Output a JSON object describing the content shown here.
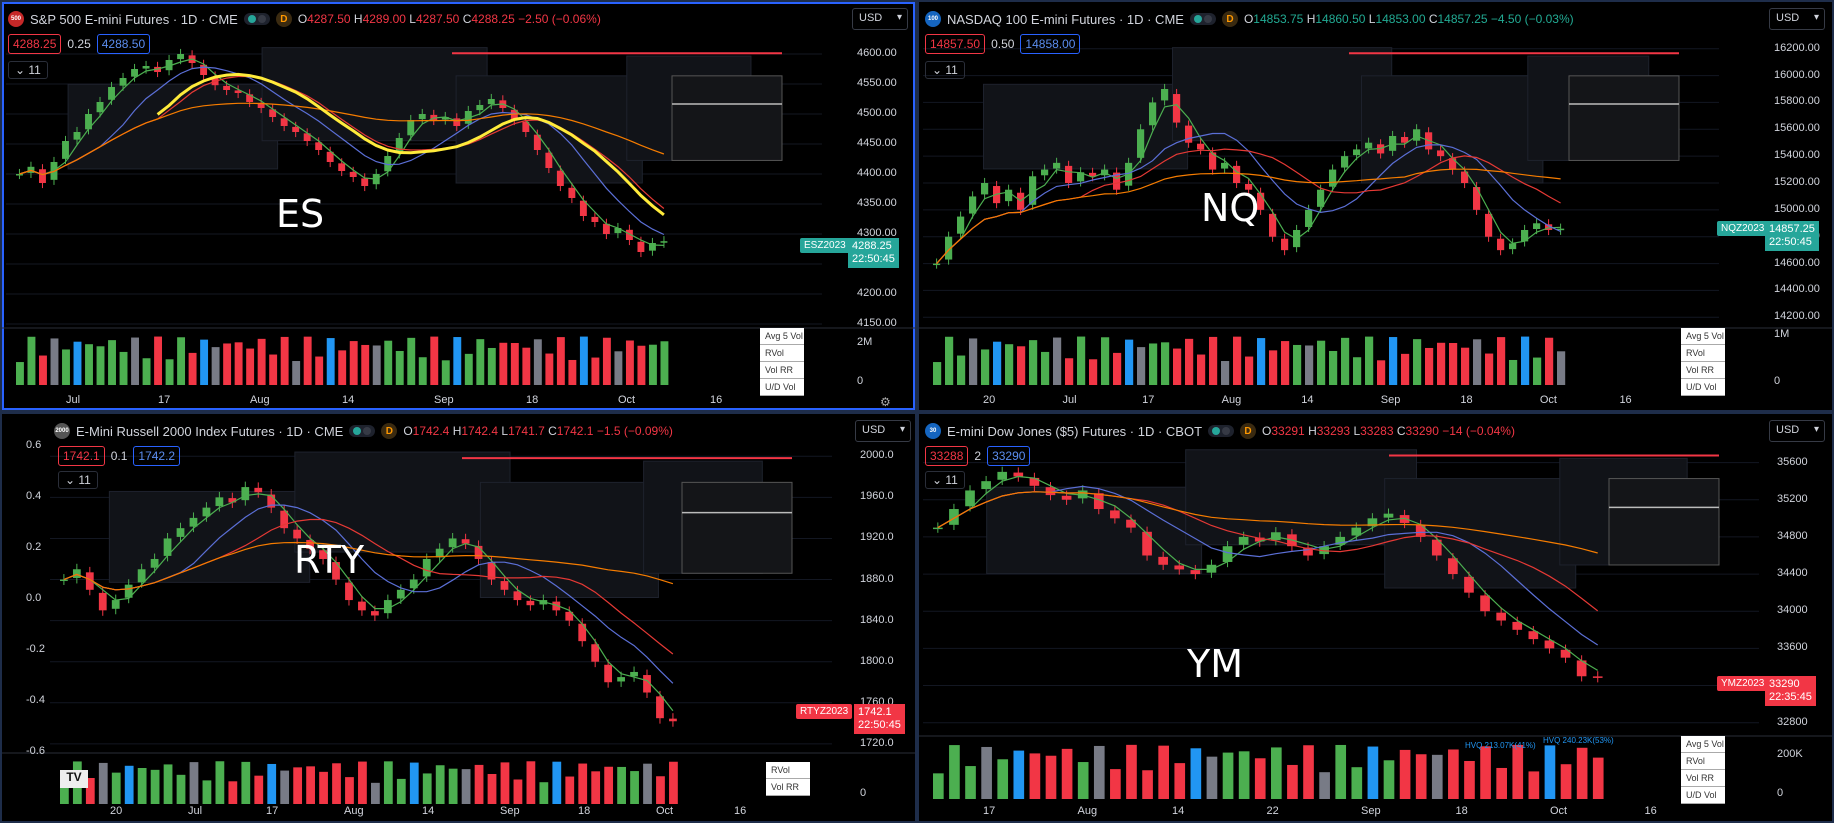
{
  "colors": {
    "up": "#4caf50",
    "down": "#f23645",
    "neutral": "#787b86",
    "hv": "#2196f3",
    "ma_fast": "#4caf50",
    "ma_mid": "#5b6fd6",
    "ma_slow": "#e53935",
    "ma_long": "#f57c00",
    "hl": "#ffeb3b"
  },
  "panes": [
    {
      "id": "es",
      "title": "S&P 500 E-mini Futures · 1D · CME",
      "icon": "500",
      "ohlc": {
        "o": "4287.50",
        "h": "4289.00",
        "l": "4287.50",
        "c": "4288.25",
        "chg": "−2.50 (−0.06%)"
      },
      "bid": "4288.25",
      "spread": "0.25",
      "ask": "4288.50",
      "ind_count": "11",
      "currency": "USD",
      "watermark": "ES",
      "yticks": [
        "4600.00",
        "4550.00",
        "4500.00",
        "4450.00",
        "4400.00",
        "4350.00",
        "4300.00",
        "4250.00",
        "4200.00",
        "4150.00"
      ],
      "xticks": [
        "Jul",
        "17",
        "Aug",
        "14",
        "Sep",
        "18",
        "Oct",
        "16"
      ],
      "price_tag": "4288.25",
      "countdown": "22:50:45",
      "ticker": "ESZ2023",
      "vol_axis": [
        "2M",
        "0"
      ],
      "vol_table": [
        "Avg 5 Vol",
        "RVol",
        "Vol RR",
        "U/D Vol"
      ]
    },
    {
      "id": "nq",
      "title": "NASDAQ 100 E-mini Futures · 1D · CME",
      "icon": "100",
      "ohlc": {
        "o": "14853.75",
        "h": "14860.50",
        "l": "14853.00",
        "c": "14857.25",
        "chg": "−4.50 (−0.03%)"
      },
      "bid": "14857.50",
      "spread": "0.50",
      "ask": "14858.00",
      "ind_count": "11",
      "currency": "USD",
      "watermark": "NQ",
      "yticks": [
        "16200.00",
        "16000.00",
        "15800.00",
        "15600.00",
        "15400.00",
        "15200.00",
        "15000.00",
        "14800.00",
        "14600.00",
        "14400.00",
        "14200.00"
      ],
      "xticks": [
        "20",
        "Jul",
        "17",
        "Aug",
        "14",
        "Sep",
        "18",
        "Oct",
        "16"
      ],
      "price_tag": "14857.25",
      "countdown": "22:50:45",
      "ticker": "NQZ2023",
      "vol_axis": [
        "1M",
        "0"
      ],
      "vol_table": [
        "Avg 5 Vol",
        "RVol",
        "Vol RR",
        "U/D Vol"
      ]
    },
    {
      "id": "rty",
      "title": "E-Mini Russell 2000 Index Futures · 1D · CME",
      "icon": "2000",
      "ohlc": {
        "o": "1742.4",
        "h": "1742.4",
        "l": "1741.7",
        "c": "1742.1",
        "chg": "−1.5 (−0.09%)"
      },
      "bid": "1742.1",
      "spread": "0.1",
      "ask": "1742.2",
      "ind_count": "11",
      "currency": "USD",
      "watermark": "RTY",
      "yticks": [
        "2000.0",
        "1960.0",
        "1920.0",
        "1880.0",
        "1840.0",
        "1800.0",
        "1760.0",
        "1720.0"
      ],
      "lticks": [
        "0.6",
        "0.4",
        "0.2",
        "0.0",
        "-0.2",
        "-0.4",
        "-0.6"
      ],
      "xticks": [
        "20",
        "Jul",
        "17",
        "Aug",
        "14",
        "Sep",
        "18",
        "Oct",
        "16"
      ],
      "price_tag": "1742.1",
      "countdown": "22:50:45",
      "ticker": "RTYZ2023",
      "vol_axis": [
        "0"
      ],
      "vol_table": [
        "RVol",
        "Vol RR"
      ]
    },
    {
      "id": "ym",
      "title": "E-mini Dow Jones ($5) Futures · 1D · CBOT",
      "icon": "30",
      "ohlc": {
        "o": "33291",
        "h": "33293",
        "l": "33283",
        "c": "33290",
        "chg": "−14 (−0.04%)"
      },
      "bid": "33288",
      "spread": "2",
      "ask": "33290",
      "ind_count": "11",
      "currency": "USD",
      "watermark": "YM",
      "yticks": [
        "35600",
        "35200",
        "34800",
        "34400",
        "34000",
        "33600",
        "33200",
        "32800"
      ],
      "xticks": [
        "17",
        "Aug",
        "14",
        "22",
        "Sep",
        "18",
        "Oct",
        "16"
      ],
      "price_tag": "33290",
      "countdown": "22:35:45",
      "ticker": "YMZ2023",
      "vol_axis": [
        "200K",
        "0"
      ],
      "vol_table": [
        "Avg 5 Vol",
        "RVol",
        "Vol RR",
        "U/D Vol"
      ],
      "hv_labels": [
        "HVQ 213.07K(41%)",
        "HVQ 240.23K(53%)"
      ]
    }
  ],
  "chart_data": [
    {
      "type": "candlestick",
      "name": "ES",
      "ylim": [
        4150,
        4620
      ],
      "closes": [
        4400,
        4412,
        4385,
        4420,
        4455,
        4470,
        4500,
        4520,
        4545,
        4560,
        4575,
        4580,
        4570,
        4590,
        4600,
        4585,
        4565,
        4548,
        4540,
        4535,
        4520,
        4510,
        4495,
        4480,
        4470,
        4455,
        4440,
        4420,
        4405,
        4395,
        4380,
        4400,
        4430,
        4460,
        4490,
        4500,
        4490,
        4495,
        4480,
        4505,
        4515,
        4525,
        4510,
        4490,
        4470,
        4440,
        4410,
        4380,
        4360,
        4330,
        4320,
        4300,
        4310,
        4290,
        4270,
        4285,
        4288
      ]
    },
    {
      "type": "candlestick",
      "name": "NQ",
      "ylim": [
        14150,
        16250
      ],
      "closes": [
        14600,
        14800,
        14950,
        15100,
        15200,
        15050,
        15150,
        15000,
        15250,
        15300,
        15350,
        15200,
        15280,
        15250,
        15300,
        15150,
        15350,
        15600,
        15800,
        15900,
        15650,
        15500,
        15450,
        15300,
        15350,
        15200,
        15150,
        15000,
        14800,
        14700,
        14850,
        15000,
        15150,
        15300,
        15400,
        15450,
        15500,
        15420,
        15550,
        15500,
        15600,
        15450,
        15400,
        15300,
        15200,
        15000,
        14800,
        14700,
        14750,
        14850,
        14900,
        14850,
        14860
      ]
    },
    {
      "type": "candlestick",
      "name": "RTY",
      "ylim": [
        1715,
        2010
      ],
      "closes": [
        1880,
        1890,
        1870,
        1850,
        1860,
        1875,
        1890,
        1900,
        1920,
        1930,
        1940,
        1950,
        1960,
        1955,
        1970,
        1965,
        1950,
        1930,
        1920,
        1910,
        1900,
        1880,
        1860,
        1850,
        1845,
        1860,
        1870,
        1880,
        1900,
        1910,
        1920,
        1915,
        1900,
        1880,
        1870,
        1860,
        1855,
        1860,
        1850,
        1840,
        1820,
        1800,
        1780,
        1785,
        1790,
        1770,
        1745,
        1742
      ]
    },
    {
      "type": "candlestick",
      "name": "YM",
      "ylim": [
        32700,
        35800
      ],
      "closes": [
        34900,
        35100,
        35300,
        35400,
        35500,
        35450,
        35350,
        35250,
        35200,
        35300,
        35100,
        35000,
        34900,
        34600,
        34500,
        34450,
        34400,
        34500,
        34700,
        34800,
        34750,
        34850,
        34700,
        34600,
        34700,
        34800,
        34900,
        35000,
        35050,
        34950,
        34800,
        34600,
        34400,
        34200,
        34000,
        33900,
        33800,
        33700,
        33600,
        33500,
        33300,
        33290
      ]
    }
  ]
}
